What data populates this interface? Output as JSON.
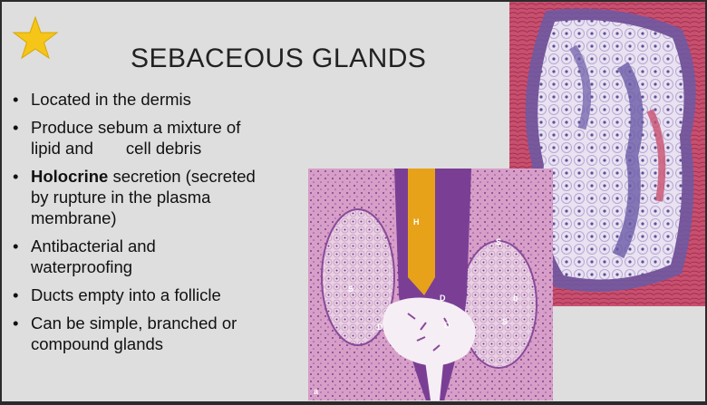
{
  "slide": {
    "title": "SEBACEOUS GLANDS",
    "bullets": [
      {
        "line1": "Located in the dermis"
      },
      {
        "line1": "Produce sebum a mixture  of",
        "line2a": "lipid and",
        "line2b": "cell debris"
      },
      {
        "bold": "Holocrine",
        "rest": " secretion (secreted",
        "line2": "by rupture in the plasma",
        "line3": "membrane)"
      },
      {
        "line1": "Antibacterial and",
        "line2": "waterproofing"
      },
      {
        "line1": "Ducts empty into a follicle"
      },
      {
        "line1": "Can be simple, branched  or",
        "line2": "compound glands"
      }
    ],
    "star_color": "#f5c518"
  },
  "micrograph_left": {
    "labels": {
      "h": "H",
      "s1": "S",
      "s2": "S",
      "s3": "S",
      "d1": "D",
      "d2": "D",
      "d3": "D",
      "corner_a": "a",
      "corner_b": "b"
    }
  }
}
